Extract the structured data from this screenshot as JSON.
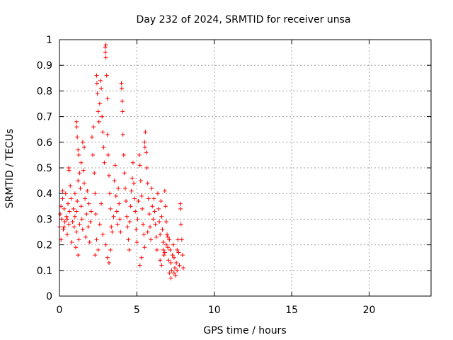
{
  "chart_data": {
    "type": "scatter",
    "title": "Day 232 of 2024, SRMTID for receiver unsa",
    "xlabel": "GPS time / hours",
    "ylabel": "SRMTID / TECUs",
    "xlim": [
      0,
      24
    ],
    "ylim": [
      0,
      1
    ],
    "xticks": [
      0,
      5,
      10,
      15,
      20
    ],
    "yticks": [
      0,
      0.1,
      0.2,
      0.3,
      0.4,
      0.5,
      0.6,
      0.7,
      0.8,
      0.9,
      1
    ],
    "grid": true,
    "marker": "+",
    "color": "#ff0000",
    "series": [
      {
        "name": "SRMTID",
        "points": [
          [
            0.0,
            0.27
          ],
          [
            0.05,
            0.32
          ],
          [
            0.1,
            0.35
          ],
          [
            0.15,
            0.3
          ],
          [
            0.2,
            0.38
          ],
          [
            0.25,
            0.26
          ],
          [
            0.3,
            0.34
          ],
          [
            0.35,
            0.29
          ],
          [
            0.4,
            0.4
          ],
          [
            0.45,
            0.31
          ],
          [
            0.5,
            0.24
          ],
          [
            0.55,
            0.36
          ],
          [
            0.6,
            0.28
          ],
          [
            0.65,
            0.33
          ],
          [
            0.1,
            0.22
          ],
          [
            0.2,
            0.41
          ],
          [
            0.3,
            0.27
          ],
          [
            0.5,
            0.3
          ],
          [
            0.6,
            0.5
          ],
          [
            0.62,
            0.49
          ],
          [
            0.7,
            0.43
          ],
          [
            0.75,
            0.38
          ],
          [
            0.8,
            0.21
          ],
          [
            0.85,
            0.29
          ],
          [
            0.9,
            0.34
          ],
          [
            0.95,
            0.27
          ],
          [
            1.0,
            0.31
          ],
          [
            1.05,
            0.19
          ],
          [
            1.1,
            0.25
          ],
          [
            1.15,
            0.37
          ],
          [
            1.2,
            0.16
          ],
          [
            1.25,
            0.22
          ],
          [
            1.3,
            0.28
          ],
          [
            1.0,
            0.4
          ],
          [
            1.1,
            0.33
          ],
          [
            1.2,
            0.45
          ],
          [
            1.1,
            0.68
          ],
          [
            1.12,
            0.66
          ],
          [
            1.15,
            0.62
          ],
          [
            1.2,
            0.57
          ],
          [
            1.25,
            0.55
          ],
          [
            1.3,
            0.48
          ],
          [
            1.35,
            0.42
          ],
          [
            1.4,
            0.35
          ],
          [
            1.45,
            0.3
          ],
          [
            1.5,
            0.26
          ],
          [
            1.55,
            0.49
          ],
          [
            1.6,
            0.44
          ],
          [
            1.65,
            0.38
          ],
          [
            1.7,
            0.23
          ],
          [
            1.75,
            0.32
          ],
          [
            1.8,
            0.41
          ],
          [
            1.85,
            0.27
          ],
          [
            1.9,
            0.36
          ],
          [
            1.95,
            0.21
          ],
          [
            2.0,
            0.29
          ],
          [
            2.05,
            0.33
          ],
          [
            1.4,
            0.52
          ],
          [
            1.5,
            0.6
          ],
          [
            1.6,
            0.58
          ],
          [
            2.1,
            0.62
          ],
          [
            2.15,
            0.55
          ],
          [
            2.2,
            0.66
          ],
          [
            2.25,
            0.48
          ],
          [
            2.3,
            0.4
          ],
          [
            2.35,
            0.32
          ],
          [
            2.4,
            0.86
          ],
          [
            2.42,
            0.83
          ],
          [
            2.45,
            0.79
          ],
          [
            2.5,
            0.72
          ],
          [
            2.55,
            0.68
          ],
          [
            2.6,
            0.75
          ],
          [
            2.65,
            0.84
          ],
          [
            2.7,
            0.81
          ],
          [
            2.75,
            0.7
          ],
          [
            2.8,
            0.64
          ],
          [
            2.85,
            0.58
          ],
          [
            2.9,
            0.52
          ],
          [
            2.3,
            0.16
          ],
          [
            2.4,
            0.22
          ],
          [
            2.5,
            0.18
          ],
          [
            2.6,
            0.28
          ],
          [
            2.7,
            0.36
          ],
          [
            2.8,
            0.24
          ],
          [
            2.95,
            0.97
          ],
          [
            2.97,
            0.95
          ],
          [
            3.0,
            0.98
          ],
          [
            3.0,
            0.93
          ],
          [
            3.05,
            0.86
          ],
          [
            3.1,
            0.77
          ],
          [
            3.1,
            0.63
          ],
          [
            3.15,
            0.55
          ],
          [
            3.2,
            0.47
          ],
          [
            3.25,
            0.4
          ],
          [
            3.3,
            0.34
          ],
          [
            3.35,
            0.27
          ],
          [
            3.0,
            0.2
          ],
          [
            3.1,
            0.15
          ],
          [
            3.2,
            0.13
          ],
          [
            3.3,
            0.18
          ],
          [
            3.4,
            0.25
          ],
          [
            3.5,
            0.31
          ],
          [
            3.55,
            0.45
          ],
          [
            3.6,
            0.51
          ],
          [
            3.65,
            0.39
          ],
          [
            3.7,
            0.33
          ],
          [
            3.75,
            0.28
          ],
          [
            3.8,
            0.42
          ],
          [
            3.85,
            0.36
          ],
          [
            3.9,
            0.3
          ],
          [
            3.95,
            0.25
          ],
          [
            4.0,
            0.83
          ],
          [
            4.02,
            0.81
          ],
          [
            4.05,
            0.76
          ],
          [
            4.08,
            0.72
          ],
          [
            4.1,
            0.63
          ],
          [
            4.15,
            0.55
          ],
          [
            4.2,
            0.48
          ],
          [
            4.25,
            0.42
          ],
          [
            4.3,
            0.37
          ],
          [
            4.35,
            0.31
          ],
          [
            4.4,
            0.27
          ],
          [
            4.45,
            0.22
          ],
          [
            4.5,
            0.18
          ],
          [
            4.55,
            0.29
          ],
          [
            4.6,
            0.35
          ],
          [
            4.65,
            0.41
          ],
          [
            4.7,
            0.46
          ],
          [
            4.75,
            0.52
          ],
          [
            4.8,
            0.44
          ],
          [
            4.85,
            0.38
          ],
          [
            4.9,
            0.33
          ],
          [
            4.95,
            0.26
          ],
          [
            5.0,
            0.21
          ],
          [
            5.05,
            0.3
          ],
          [
            5.1,
            0.37
          ],
          [
            5.15,
            0.55
          ],
          [
            5.2,
            0.51
          ],
          [
            5.25,
            0.45
          ],
          [
            5.3,
            0.39
          ],
          [
            5.35,
            0.34
          ],
          [
            5.4,
            0.28
          ],
          [
            5.45,
            0.24
          ],
          [
            5.5,
            0.6
          ],
          [
            5.52,
            0.58
          ],
          [
            5.55,
            0.64
          ],
          [
            5.6,
            0.56
          ],
          [
            5.65,
            0.5
          ],
          [
            5.7,
            0.44
          ],
          [
            5.75,
            0.38
          ],
          [
            5.8,
            0.32
          ],
          [
            5.85,
            0.27
          ],
          [
            5.9,
            0.22
          ],
          [
            5.95,
            0.42
          ],
          [
            6.0,
            0.35
          ],
          [
            5.2,
            0.12
          ],
          [
            5.3,
            0.15
          ],
          [
            5.5,
            0.19
          ],
          [
            5.7,
            0.25
          ],
          [
            6.05,
            0.3
          ],
          [
            6.1,
            0.38
          ],
          [
            6.15,
            0.33
          ],
          [
            6.2,
            0.28
          ],
          [
            6.25,
            0.23
          ],
          [
            6.3,
            0.18
          ],
          [
            6.35,
            0.4
          ],
          [
            6.4,
            0.34
          ],
          [
            6.45,
            0.29
          ],
          [
            6.5,
            0.24
          ],
          [
            6.55,
            0.37
          ],
          [
            6.6,
            0.31
          ],
          [
            6.65,
            0.26
          ],
          [
            6.7,
            0.21
          ],
          [
            6.75,
            0.16
          ],
          [
            6.8,
            0.41
          ],
          [
            6.85,
            0.35
          ],
          [
            6.9,
            0.29
          ],
          [
            6.95,
            0.24
          ],
          [
            7.0,
            0.19
          ],
          [
            7.05,
            0.14
          ],
          [
            7.1,
            0.22
          ],
          [
            7.15,
            0.18
          ],
          [
            7.2,
            0.13
          ],
          [
            7.25,
            0.1
          ],
          [
            7.3,
            0.16
          ],
          [
            7.35,
            0.2
          ],
          [
            7.4,
            0.15
          ],
          [
            7.45,
            0.11
          ],
          [
            7.5,
            0.08
          ],
          [
            7.55,
            0.13
          ],
          [
            7.6,
            0.18
          ],
          [
            7.65,
            0.22
          ],
          [
            7.7,
            0.17
          ],
          [
            7.75,
            0.12
          ],
          [
            7.8,
            0.36
          ],
          [
            7.82,
            0.34
          ],
          [
            7.85,
            0.28
          ],
          [
            7.9,
            0.22
          ],
          [
            7.95,
            0.16
          ],
          [
            8.0,
            0.11
          ],
          [
            6.6,
            0.12
          ],
          [
            6.9,
            0.2
          ],
          [
            7.0,
            0.23
          ],
          [
            7.2,
            0.07
          ],
          [
            7.4,
            0.09
          ],
          [
            6.5,
            0.14
          ],
          [
            6.7,
            0.18
          ],
          [
            6.8,
            0.17
          ],
          [
            7.1,
            0.09
          ],
          [
            7.6,
            0.1
          ]
        ]
      }
    ]
  }
}
